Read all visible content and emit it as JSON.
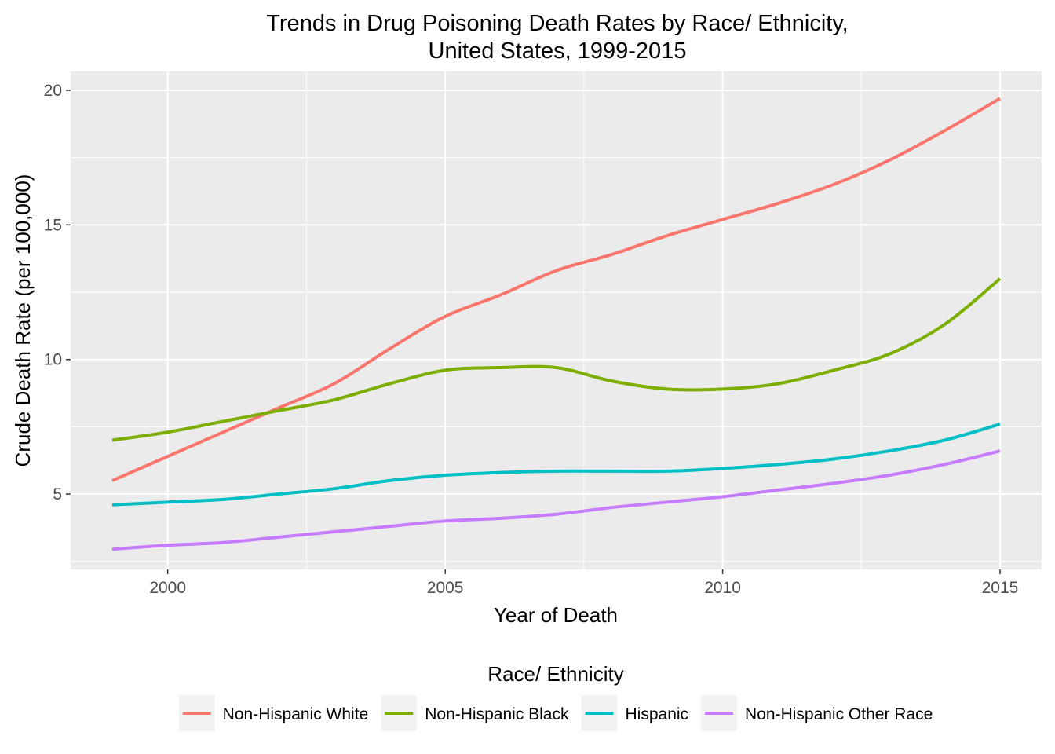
{
  "chart_data": {
    "type": "line",
    "title_lines": [
      "Trends in Drug Poisoning Death Rates by Race/ Ethnicity,",
      "United States, 1999-2015"
    ],
    "xlabel": "Year of Death",
    "ylabel": "Crude Death Rate (per 100,000)",
    "xlim": [
      1998.25,
      2015.75
    ],
    "ylim": [
      2.2,
      20.7
    ],
    "x_ticks": [
      2000,
      2005,
      2010,
      2015
    ],
    "y_ticks": [
      5,
      10,
      15,
      20
    ],
    "grid": true,
    "legend": {
      "title": "Race/ Ethnicity",
      "position": "bottom"
    },
    "x": [
      1999,
      2000,
      2001,
      2002,
      2003,
      2004,
      2005,
      2006,
      2007,
      2008,
      2009,
      2010,
      2011,
      2012,
      2013,
      2014,
      2015
    ],
    "series": [
      {
        "name": "Non-Hispanic White",
        "color": "#F8766D",
        "values": [
          5.5,
          6.4,
          7.3,
          8.2,
          9.1,
          10.4,
          11.6,
          12.4,
          13.3,
          13.9,
          14.6,
          15.2,
          15.8,
          16.5,
          17.4,
          18.5,
          19.7
        ]
      },
      {
        "name": "Non-Hispanic Black",
        "color": "#7CAE00",
        "values": [
          7.0,
          7.3,
          7.7,
          8.1,
          8.5,
          9.1,
          9.6,
          9.7,
          9.7,
          9.2,
          8.9,
          8.9,
          9.1,
          9.6,
          10.2,
          11.3,
          13.0
        ]
      },
      {
        "name": "Hispanic",
        "color": "#00BFC4",
        "values": [
          4.6,
          4.7,
          4.8,
          5.0,
          5.2,
          5.5,
          5.7,
          5.8,
          5.85,
          5.85,
          5.85,
          5.95,
          6.1,
          6.3,
          6.6,
          7.0,
          7.6
        ]
      },
      {
        "name": "Non-Hispanic Other Race",
        "color": "#C77CFF",
        "values": [
          2.95,
          3.1,
          3.2,
          3.4,
          3.6,
          3.8,
          4.0,
          4.1,
          4.25,
          4.5,
          4.7,
          4.9,
          5.15,
          5.4,
          5.7,
          6.1,
          6.6
        ]
      }
    ]
  }
}
